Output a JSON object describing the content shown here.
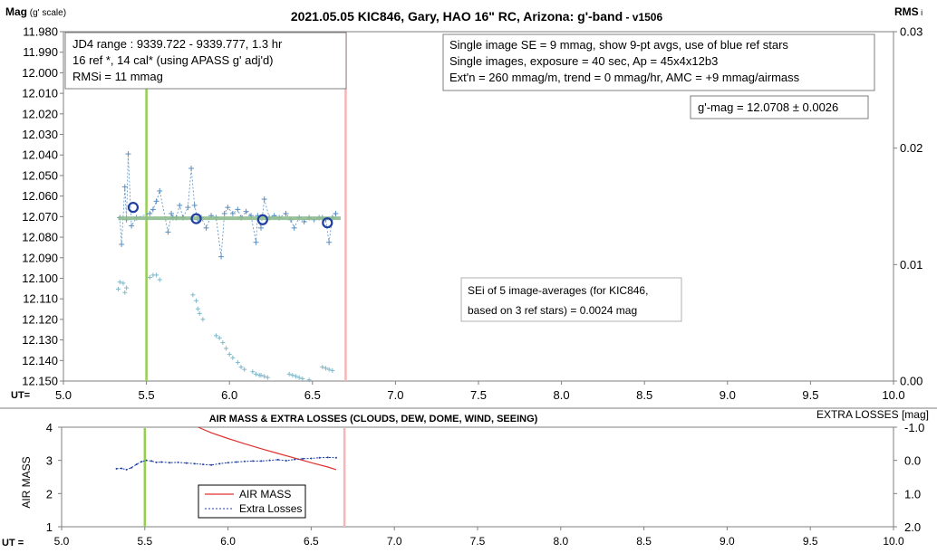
{
  "chart_data": [
    {
      "type": "scatter",
      "title_main": "2021.05.05 KIC846, Gary, HAO 16\" RC, Arizona: g'-band",
      "title_suffix": " - v1506",
      "ylabel_main": "Mag",
      "ylabel_sub": " (g' scale)",
      "y2label_main": "RMS",
      "y2label_sub": " i",
      "x_axis_tag": "UT=",
      "xlim": [
        5.0,
        10.0
      ],
      "ylim": [
        11.98,
        12.15
      ],
      "y_reversed": true,
      "y2lim": [
        0.0,
        0.03
      ],
      "x_ticks": [
        "5.0",
        "5.5",
        "6.0",
        "6.5",
        "7.0",
        "7.5",
        "8.0",
        "8.5",
        "9.0",
        "9.5",
        "10.0"
      ],
      "y_ticks": [
        "11.980",
        "11.990",
        "12.000",
        "12.010",
        "12.020",
        "12.030",
        "12.040",
        "12.050",
        "12.060",
        "12.070",
        "12.080",
        "12.090",
        "12.100",
        "12.110",
        "12.120",
        "12.130",
        "12.140",
        "12.150"
      ],
      "y2_ticks": [
        "0.03",
        "0.02",
        "0.01",
        "0.00"
      ],
      "vlines": [
        {
          "x": 5.5,
          "color": "#92d050"
        },
        {
          "x": 6.7,
          "color": "#f4b6b6"
        }
      ],
      "mean_line": {
        "x": [
          5.33,
          6.67
        ],
        "y": 12.0708,
        "color": "#8fbc8f"
      },
      "series": [
        {
          "kind": "target_individual",
          "color": "#5b8fc0",
          "x": [
            5.34,
            5.35,
            5.37,
            5.38,
            5.39,
            5.41,
            5.44,
            5.52,
            5.54,
            5.56,
            5.58,
            5.63,
            5.65,
            5.66,
            5.68,
            5.7,
            5.72,
            5.75,
            5.77,
            5.79,
            5.81,
            5.83,
            5.86,
            5.89,
            5.92,
            5.95,
            5.97,
            5.99,
            6.02,
            6.05,
            6.07,
            6.1,
            6.13,
            6.16,
            6.17,
            6.19,
            6.21,
            6.24,
            6.27,
            6.3,
            6.34,
            6.37,
            6.39,
            6.42,
            6.45,
            6.48,
            6.51,
            6.54,
            6.56,
            6.58,
            6.6,
            6.62,
            6.64
          ],
          "y": [
            12.0705,
            12.0835,
            12.0555,
            12.0715,
            12.0395,
            12.0745,
            12.0705,
            12.0685,
            12.0665,
            12.0625,
            12.0575,
            12.0775,
            12.0685,
            12.0705,
            12.0705,
            12.0645,
            12.0705,
            12.0655,
            12.0465,
            12.0645,
            12.0715,
            12.0705,
            12.0755,
            12.0695,
            12.0705,
            12.0895,
            12.0685,
            12.0655,
            12.0685,
            12.0665,
            12.0705,
            12.0675,
            12.0695,
            12.0825,
            12.0695,
            12.0755,
            12.0615,
            12.0705,
            12.0695,
            12.0705,
            12.0685,
            12.0715,
            12.0755,
            12.0705,
            12.0725,
            12.0705,
            12.0715,
            12.0705,
            12.0705,
            12.0715,
            12.0825,
            12.0705,
            12.0685
          ]
        },
        {
          "kind": "target_avg",
          "color": "#1f3fa0",
          "x": [
            5.42,
            5.8,
            6.2,
            6.59
          ],
          "y": [
            12.0655,
            12.071,
            12.0715,
            12.073
          ]
        },
        {
          "kind": "rms",
          "color": "#7fb8c8",
          "x": [
            5.33,
            5.34,
            5.36,
            5.37,
            5.38,
            5.52,
            5.54,
            5.56,
            5.58,
            5.78,
            5.8,
            5.81,
            5.82,
            5.84,
            5.92,
            5.94,
            5.96,
            5.98,
            6.0,
            6.02,
            6.05,
            6.07,
            6.09,
            6.14,
            6.16,
            6.18,
            6.19,
            6.21,
            6.23,
            6.36,
            6.38,
            6.4,
            6.42,
            6.44,
            6.48,
            6.56,
            6.58,
            6.6,
            6.62
          ],
          "y": [
            0.0079,
            0.0085,
            0.0084,
            0.0076,
            0.008,
            0.0089,
            0.0091,
            0.0091,
            0.0087,
            0.0074,
            0.0069,
            0.0062,
            0.0058,
            0.0053,
            0.0039,
            0.0037,
            0.0033,
            0.0028,
            0.0023,
            0.002,
            0.0016,
            0.0012,
            0.001,
            0.0008,
            0.0006,
            0.0005,
            0.0005,
            0.0004,
            0.0003,
            0.0006,
            0.0005,
            0.0004,
            0.0003,
            0.0002,
            0.0001,
            0.0012,
            0.0011,
            0.001,
            0.0009
          ]
        }
      ],
      "annotations": {
        "jd_box": [
          "JD4 range : 9339.722 - 9339.777,  1.3  hr",
          "16 ref *, 14 cal* (using APASS g' adj'd)",
          "RMSi = 11 mmag"
        ],
        "info_box": [
          "Single image SE = 9 mmag, show  9-pt avgs, use of blue ref stars",
          "Single images, exposure = 40 sec, Ap = 45x4x12b3",
          "Ext'n = 260 mmag/m, trend =  0 mmag/hr, AMC = +9 mmag/airmass"
        ],
        "gmag_box": "g'-mag = 12.0708 ± 0.0026",
        "sei_box": [
          "SEi of 5 image-averages (for KIC846,",
          "based on 3 ref stars) = 0.0024 mag"
        ]
      }
    },
    {
      "type": "line",
      "title": "AIR MASS & EXTRA LOSSES (CLOUDS, DEW, DOME, WIND, SEEING)",
      "ylabel": "AIR MASS",
      "y2label": "EXTRA LOSSES [mag]",
      "x_axis_tag": "UT =",
      "xlim": [
        5.0,
        10.0
      ],
      "ylim": [
        1,
        4
      ],
      "y2lim": [
        2.0,
        -1.0
      ],
      "x_ticks": [
        "5.0",
        "5.5",
        "6.0",
        "6.5",
        "7.0",
        "7.5",
        "8.0",
        "8.5",
        "9.0",
        "9.5",
        "10.0"
      ],
      "y_ticks": [
        "1",
        "2",
        "3",
        "4"
      ],
      "y2_ticks": [
        "-1.0",
        "0.0",
        "1.0",
        "2.0"
      ],
      "vlines": [
        {
          "x": 5.5,
          "color": "#92d050"
        },
        {
          "x": 6.7,
          "color": "#f4b6b6"
        }
      ],
      "legend": {
        "placement": "bottom-left-center"
      },
      "series": [
        {
          "name": "AIR MASS",
          "color": "#e03030",
          "x": [
            5.82,
            5.9,
            6.0,
            6.1,
            6.2,
            6.3,
            6.4,
            6.5,
            6.6,
            6.65
          ],
          "y": [
            4.0,
            3.83,
            3.66,
            3.5,
            3.35,
            3.21,
            3.07,
            2.93,
            2.8,
            2.72
          ]
        },
        {
          "name": "Extra Losses",
          "color": "#1f3fa0",
          "x": [
            5.33,
            5.36,
            5.39,
            5.42,
            5.45,
            5.48,
            5.51,
            5.54,
            5.57,
            5.6,
            5.65,
            5.7,
            5.75,
            5.8,
            5.85,
            5.9,
            5.95,
            6.0,
            6.05,
            6.1,
            6.15,
            6.2,
            6.25,
            6.3,
            6.35,
            6.4,
            6.45,
            6.5,
            6.55,
            6.6,
            6.65
          ],
          "y": [
            0.25,
            0.24,
            0.28,
            0.22,
            0.12,
            0.04,
            0.0,
            0.02,
            0.06,
            0.05,
            0.07,
            0.06,
            0.08,
            0.1,
            0.12,
            0.14,
            0.1,
            0.07,
            0.05,
            0.03,
            0.02,
            0.02,
            0.0,
            -0.02,
            0.01,
            -0.03,
            -0.05,
            -0.06,
            -0.08,
            -0.09,
            -0.08
          ]
        }
      ]
    }
  ]
}
